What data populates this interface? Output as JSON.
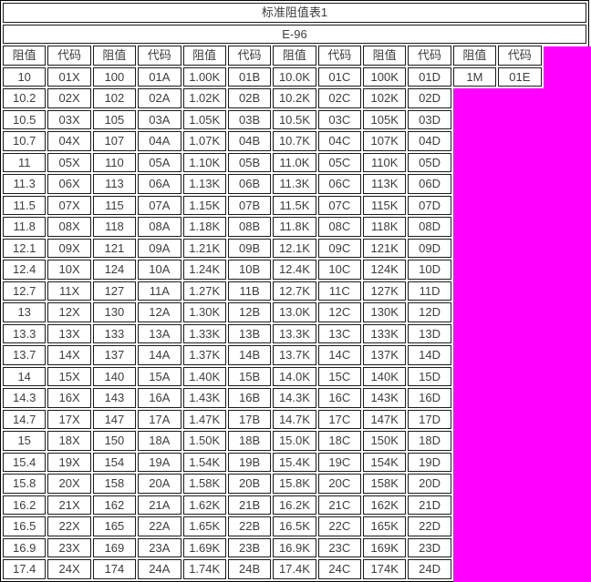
{
  "colors": {
    "highlight": "#ff00ff",
    "cell_background": "#ffffff",
    "border": "#000000",
    "text": "#3d3d3d"
  },
  "table": {
    "title": "标准阻值表1",
    "subtitle": "E-96",
    "header_cells": [
      "阻值",
      "代码",
      "阻值",
      "代码",
      "阻值",
      "代码",
      "阻值",
      "代码",
      "阻值",
      "代码",
      "阻值",
      "代码"
    ],
    "rows": [
      [
        "10",
        "01X",
        "100",
        "01A",
        "1.00K",
        "01B",
        "10.0K",
        "01C",
        "100K",
        "01D",
        "1M",
        "01E"
      ],
      [
        "10.2",
        "02X",
        "102",
        "02A",
        "1.02K",
        "02B",
        "10.2K",
        "02C",
        "102K",
        "02D"
      ],
      [
        "10.5",
        "03X",
        "105",
        "03A",
        "1.05K",
        "03B",
        "10.5K",
        "03C",
        "105K",
        "03D"
      ],
      [
        "10.7",
        "04X",
        "107",
        "04A",
        "1.07K",
        "04B",
        "10.7K",
        "04C",
        "107K",
        "04D"
      ],
      [
        "11",
        "05X",
        "110",
        "05A",
        "1.10K",
        "05B",
        "11.0K",
        "05C",
        "110K",
        "05D"
      ],
      [
        "11.3",
        "06X",
        "113",
        "06A",
        "1.13K",
        "06B",
        "11.3K",
        "06C",
        "113K",
        "06D"
      ],
      [
        "11.5",
        "07X",
        "115",
        "07A",
        "1.15K",
        "07B",
        "11.5K",
        "07C",
        "115K",
        "07D"
      ],
      [
        "11.8",
        "08X",
        "118",
        "08A",
        "1.18K",
        "08B",
        "11.8K",
        "08C",
        "118K",
        "08D"
      ],
      [
        "12.1",
        "09X",
        "121",
        "09A",
        "1.21K",
        "09B",
        "12.1K",
        "09C",
        "121K",
        "09D"
      ],
      [
        "12.4",
        "10X",
        "124",
        "10A",
        "1.24K",
        "10B",
        "12.4K",
        "10C",
        "124K",
        "10D"
      ],
      [
        "12.7",
        "11X",
        "127",
        "11A",
        "1.27K",
        "11B",
        "12.7K",
        "11C",
        "127K",
        "11D"
      ],
      [
        "13",
        "12X",
        "130",
        "12A",
        "1.30K",
        "12B",
        "13.0K",
        "12C",
        "130K",
        "12D"
      ],
      [
        "13.3",
        "13X",
        "133",
        "13A",
        "1.33K",
        "13B",
        "13.3K",
        "13C",
        "133K",
        "13D"
      ],
      [
        "13.7",
        "14X",
        "137",
        "14A",
        "1.37K",
        "14B",
        "13.7K",
        "14C",
        "137K",
        "14D"
      ],
      [
        "14",
        "15X",
        "140",
        "15A",
        "1.40K",
        "15B",
        "14.0K",
        "15C",
        "140K",
        "15D"
      ],
      [
        "14.3",
        "16X",
        "143",
        "16A",
        "1.43K",
        "16B",
        "14.3K",
        "16C",
        "143K",
        "16D"
      ],
      [
        "14.7",
        "17X",
        "147",
        "17A",
        "1.47K",
        "17B",
        "14.7K",
        "17C",
        "147K",
        "17D"
      ],
      [
        "15",
        "18X",
        "150",
        "18A",
        "1.50K",
        "18B",
        "15.0K",
        "18C",
        "150K",
        "18D"
      ],
      [
        "15.4",
        "19X",
        "154",
        "19A",
        "1.54K",
        "19B",
        "15.4K",
        "19C",
        "154K",
        "19D"
      ],
      [
        "15.8",
        "20X",
        "158",
        "20A",
        "1.58K",
        "20B",
        "15.8K",
        "20C",
        "158K",
        "20D"
      ],
      [
        "16.2",
        "21X",
        "162",
        "21A",
        "1.62K",
        "21B",
        "16.2K",
        "21C",
        "162K",
        "21D"
      ],
      [
        "16.5",
        "22X",
        "165",
        "22A",
        "1.65K",
        "22B",
        "16.5K",
        "22C",
        "165K",
        "22D"
      ],
      [
        "16.9",
        "23X",
        "169",
        "23A",
        "1.69K",
        "23B",
        "16.9K",
        "23C",
        "169K",
        "23D"
      ],
      [
        "17.4",
        "24X",
        "174",
        "24A",
        "1.74K",
        "24B",
        "17.4K",
        "24C",
        "174K",
        "24D"
      ]
    ]
  }
}
